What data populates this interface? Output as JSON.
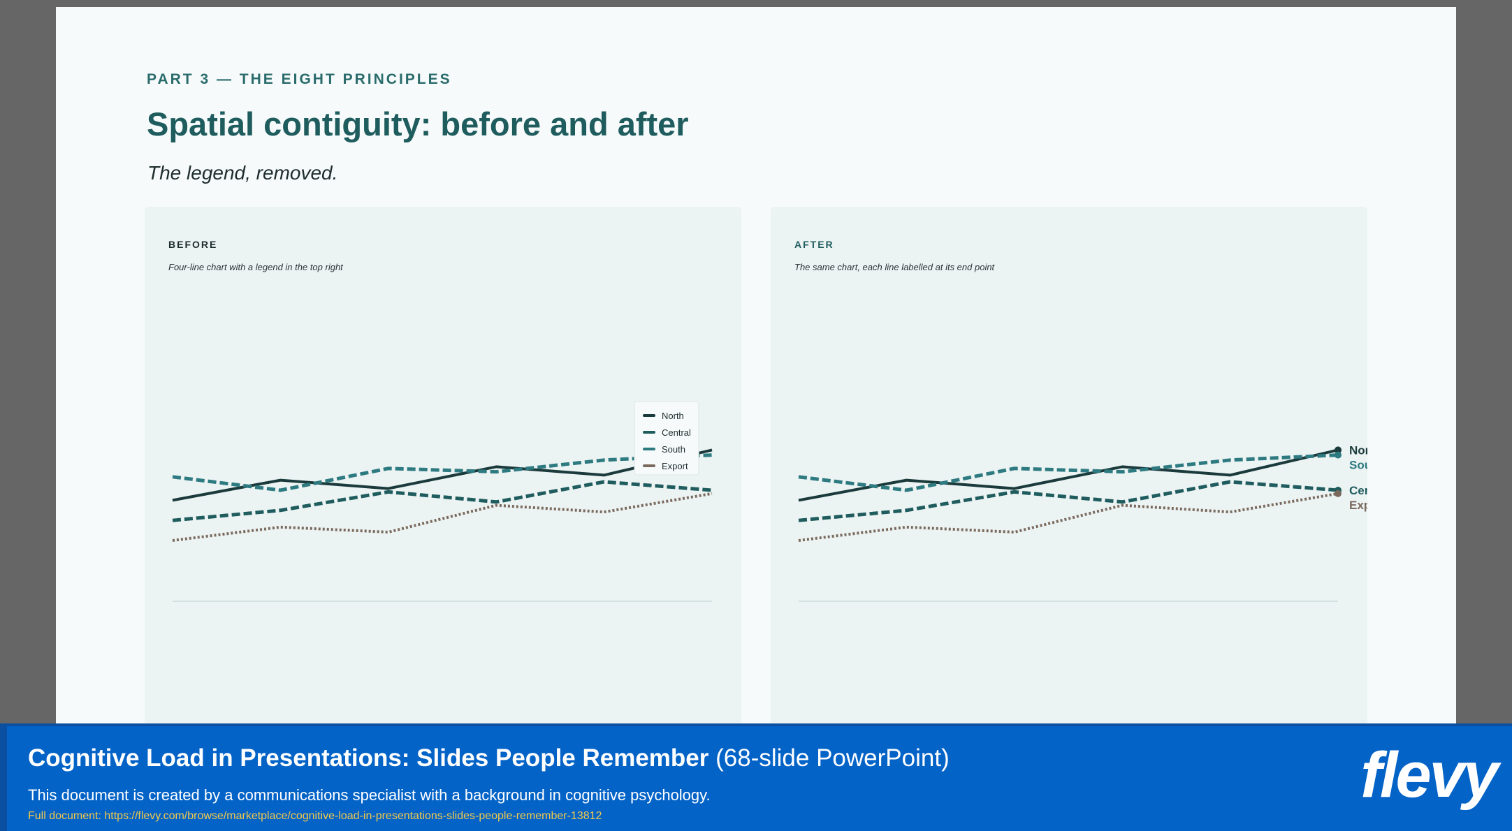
{
  "slide": {
    "kicker": "PART 3 — THE EIGHT PRINCIPLES",
    "title": "Spatial contiguity: before and after",
    "subtitle": "The legend, removed."
  },
  "panels": {
    "before": {
      "label": "BEFORE",
      "caption": "Four-line chart with a legend in the top right"
    },
    "after": {
      "label": "AFTER",
      "caption": "The same chart, each line labelled at its end point"
    }
  },
  "colors": {
    "north": "#1b3a3b",
    "central": "#1f5c5e",
    "south": "#2d7a80",
    "export": "#7a6a5e",
    "banner": "#0463c7",
    "accent": "#2a6b6b"
  },
  "chart_data": [
    {
      "type": "line",
      "title": "",
      "xlabel": "",
      "ylabel": "",
      "x": [
        1,
        2,
        3,
        4,
        5,
        6
      ],
      "ylim": [
        0,
        100
      ],
      "grid": false,
      "legend": "top-right",
      "series": [
        {
          "name": "North",
          "values": [
            54,
            66,
            61,
            74,
            69,
            84
          ],
          "style": "solid"
        },
        {
          "name": "Central",
          "values": [
            42,
            48,
            59,
            53,
            65,
            60
          ],
          "style": "dashed"
        },
        {
          "name": "South",
          "values": [
            68,
            60,
            73,
            71,
            78,
            81
          ],
          "style": "dashed"
        },
        {
          "name": "Export",
          "values": [
            30,
            38,
            35,
            51,
            47,
            58
          ],
          "style": "dotted"
        }
      ]
    },
    {
      "type": "line",
      "title": "",
      "xlabel": "",
      "ylabel": "",
      "x": [
        1,
        2,
        3,
        4,
        5,
        6
      ],
      "ylim": [
        0,
        100
      ],
      "grid": false,
      "legend": "end-labels",
      "series": [
        {
          "name": "North",
          "values": [
            54,
            66,
            61,
            74,
            69,
            84
          ],
          "style": "solid"
        },
        {
          "name": "Central",
          "values": [
            42,
            48,
            59,
            53,
            65,
            60
          ],
          "style": "dashed"
        },
        {
          "name": "South",
          "values": [
            68,
            60,
            73,
            71,
            78,
            81
          ],
          "style": "dashed"
        },
        {
          "name": "Export",
          "values": [
            30,
            38,
            35,
            51,
            47,
            58
          ],
          "style": "dotted"
        }
      ]
    }
  ],
  "banner": {
    "title_bold": "Cognitive Load in Presentations: Slides People Remember",
    "title_light": "(68-slide PowerPoint)",
    "description": "This document is created by a communications specialist with a background in cognitive psychology.",
    "link": "Full document: https://flevy.com/browse/marketplace/cognitive-load-in-presentations-slides-people-remember-13812",
    "logo": "flevy"
  }
}
